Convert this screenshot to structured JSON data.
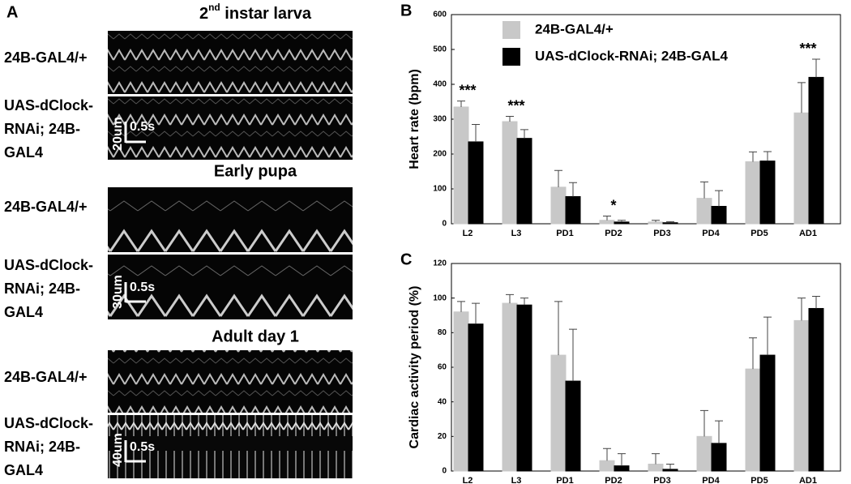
{
  "panel_a": {
    "label": "A",
    "sections": [
      {
        "title": {
          "ordinal": "2",
          "suffix": "nd",
          "rest": " instar larva"
        },
        "row1": "24B-GAL4/+",
        "row2": [
          "UAS-dClock-",
          "RNAi; 24B-",
          "GAL4"
        ],
        "scale_y": "20um",
        "scale_x": "0.5s"
      },
      {
        "title": {
          "rest": "Early pupa"
        },
        "row1": "24B-GAL4/+",
        "row2": [
          "UAS-dClock-",
          "RNAi; 24B-",
          "GAL4"
        ],
        "scale_y": "30um",
        "scale_x": "0.5s"
      },
      {
        "title": {
          "rest": "Adult day 1"
        },
        "row1": "24B-GAL4/+",
        "row2": [
          "UAS-dClock-",
          "RNAi; 24B-",
          "GAL4"
        ],
        "scale_y": "40um",
        "scale_x": "0.5s"
      }
    ]
  },
  "chart_data": [
    {
      "type": "bar",
      "panel": "B",
      "y_label": "Heart rate (bpm)",
      "categories": [
        "L2",
        "L3",
        "PD1",
        "PD2",
        "PD3",
        "PD4",
        "PD5",
        "AD1"
      ],
      "series": [
        {
          "name": "24B-GAL4/+",
          "color": "#c8c8c8",
          "values": [
            335,
            293,
            105,
            10,
            5,
            73,
            178,
            318
          ],
          "errors": [
            17,
            15,
            48,
            12,
            5,
            47,
            28,
            87
          ]
        },
        {
          "name": "UAS-dClock-RNAi; 24B-GAL4",
          "color": "#000000",
          "values": [
            235,
            245,
            78,
            5,
            3,
            50,
            180,
            420
          ],
          "errors": [
            50,
            25,
            40,
            5,
            3,
            45,
            27,
            52
          ]
        }
      ],
      "ylim": [
        0,
        600
      ],
      "yticks": [
        0,
        100,
        200,
        300,
        400,
        500,
        600
      ],
      "legend": "upper left",
      "annotations": [
        {
          "text": "***",
          "category": 0
        },
        {
          "text": "***",
          "category": 1
        },
        {
          "text": "*",
          "category": 3
        },
        {
          "text": "***",
          "category": 7
        }
      ]
    },
    {
      "type": "bar",
      "panel": "C",
      "y_label": "Cardiac activity period (%)",
      "categories": [
        "L2",
        "L3",
        "PD1",
        "PD2",
        "PD3",
        "PD4",
        "PD5",
        "AD1"
      ],
      "series": [
        {
          "color": "#c8c8c8",
          "values": [
            92,
            97,
            67,
            6,
            4,
            20,
            59,
            87
          ],
          "errors": [
            6,
            5,
            31,
            7,
            6,
            15,
            18,
            13
          ]
        },
        {
          "color": "#000000",
          "values": [
            85,
            96,
            52,
            3,
            1,
            16,
            67,
            94
          ],
          "errors": [
            12,
            4,
            30,
            7,
            3,
            13,
            22,
            7
          ]
        }
      ],
      "ylim": [
        0,
        120
      ],
      "yticks": [
        0,
        20,
        40,
        60,
        80,
        100,
        120
      ]
    }
  ]
}
